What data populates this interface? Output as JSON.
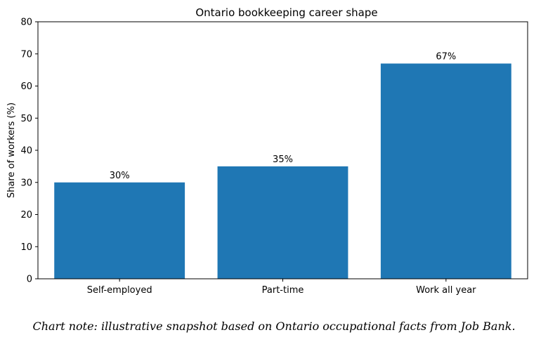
{
  "chart_data": {
    "type": "bar",
    "title": "Ontario bookkeeping career shape",
    "xlabel": "",
    "ylabel": "Share of workers (%)",
    "categories": [
      "Self-employed",
      "Part-time",
      "Work all year"
    ],
    "values": [
      30,
      35,
      67
    ],
    "data_labels": [
      "30%",
      "35%",
      "67%"
    ],
    "ylim": [
      0,
      80
    ],
    "yticks": [
      0,
      10,
      20,
      30,
      40,
      50,
      60,
      70,
      80
    ],
    "grid": false,
    "bar_color": "#1f77b4"
  },
  "note": "Chart note: illustrative snapshot based on Ontario occupational facts from Job Bank."
}
